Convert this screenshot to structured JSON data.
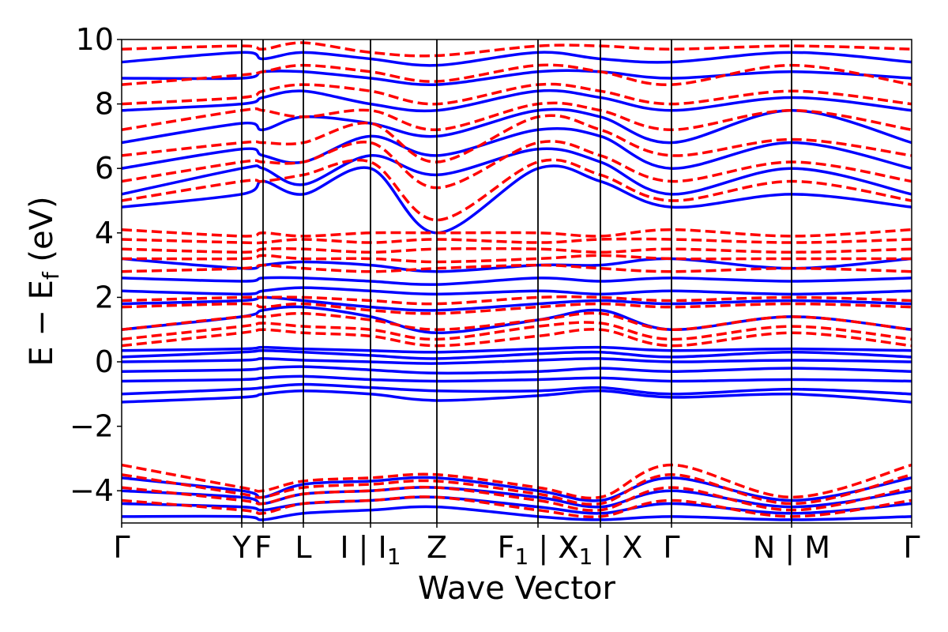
{
  "chart_data": {
    "type": "line",
    "title": "",
    "xlabel": "Wave Vector",
    "ylabel": "E − E_f (eV)",
    "ylabel_parts": {
      "main": "E − E",
      "subscript": "f",
      "unit": " (eV)"
    },
    "ylim": [
      -5,
      10
    ],
    "yticks": [
      -4,
      -2,
      0,
      2,
      4,
      6,
      8,
      10
    ],
    "ytick_labels": [
      "−4",
      "−2",
      "0",
      "2",
      "4",
      "6",
      "8",
      "10"
    ],
    "xlim": [
      0,
      1
    ],
    "kpoints": [
      {
        "x": 0.0,
        "label": "Γ"
      },
      {
        "x": 0.152,
        "label": "Y"
      },
      {
        "x": 0.179,
        "label": "F"
      },
      {
        "x": 0.23,
        "label": "L"
      },
      {
        "x": 0.315,
        "label": "I | I",
        "subscript": "1"
      },
      {
        "x": 0.399,
        "label": "Z"
      },
      {
        "x": 0.527,
        "label": "F",
        "subscript": "1",
        "suffix": " | X"
      },
      {
        "x": 0.606,
        "label": "X",
        "subscript": "1",
        "suffix": " | X"
      },
      {
        "x": 0.696,
        "label": "Γ"
      },
      {
        "x": 0.848,
        "label": "N | M"
      },
      {
        "x": 1.0,
        "label": "Γ"
      }
    ],
    "grid": false,
    "legend": "none",
    "series": [
      {
        "style": "solid",
        "color": "#0000ff",
        "bands": [
          [
            -1.25,
            -1.1,
            -1.0,
            -0.9,
            -1.0,
            -1.2,
            -1.05,
            -0.9,
            -1.1,
            -1.0,
            -1.25
          ],
          [
            -1.0,
            -0.85,
            -0.8,
            -0.7,
            -0.8,
            -0.9,
            -0.9,
            -0.8,
            -1.0,
            -0.85,
            -1.0
          ],
          [
            -0.6,
            -0.55,
            -0.5,
            -0.45,
            -0.55,
            -0.6,
            -0.55,
            -0.5,
            -0.6,
            -0.55,
            -0.6
          ],
          [
            -0.3,
            -0.25,
            -0.2,
            -0.15,
            -0.25,
            -0.35,
            -0.3,
            -0.2,
            -0.3,
            -0.2,
            -0.3
          ],
          [
            0.0,
            0.05,
            0.1,
            0.05,
            0.0,
            -0.05,
            0.05,
            0.1,
            0.0,
            0.05,
            0.0
          ],
          [
            0.15,
            0.3,
            0.35,
            0.3,
            0.2,
            0.1,
            0.25,
            0.3,
            0.15,
            0.3,
            0.15
          ],
          [
            0.35,
            0.4,
            0.45,
            0.4,
            0.35,
            0.3,
            0.4,
            0.45,
            0.35,
            0.4,
            0.35
          ],
          [
            1.0,
            1.4,
            1.6,
            1.7,
            1.4,
            0.9,
            1.3,
            1.6,
            1.0,
            1.4,
            1.0
          ],
          [
            1.8,
            1.9,
            2.0,
            1.9,
            1.7,
            1.6,
            1.8,
            1.9,
            1.8,
            1.9,
            1.8
          ],
          [
            2.2,
            2.1,
            2.2,
            2.3,
            2.2,
            2.1,
            2.2,
            2.1,
            2.2,
            2.1,
            2.2
          ],
          [
            2.6,
            2.5,
            2.6,
            2.6,
            2.5,
            2.4,
            2.6,
            2.5,
            2.6,
            2.5,
            2.6
          ],
          [
            3.2,
            2.9,
            3.0,
            3.1,
            3.0,
            2.8,
            3.0,
            3.0,
            3.2,
            2.9,
            3.2
          ],
          [
            -3.6,
            -4.0,
            -4.2,
            -3.8,
            -3.7,
            -3.6,
            -4.0,
            -4.3,
            -3.6,
            -4.3,
            -3.6
          ],
          [
            -4.0,
            -4.2,
            -4.4,
            -4.1,
            -4.0,
            -3.9,
            -4.2,
            -4.5,
            -4.0,
            -4.5,
            -4.0
          ],
          [
            -4.4,
            -4.5,
            -4.6,
            -4.4,
            -4.3,
            -4.2,
            -4.5,
            -4.7,
            -4.4,
            -4.7,
            -4.4
          ],
          [
            -4.8,
            -4.8,
            -4.9,
            -4.7,
            -4.6,
            -4.5,
            -4.8,
            -4.9,
            -4.8,
            -4.9,
            -4.8
          ],
          [
            4.8,
            5.2,
            5.6,
            5.2,
            6.0,
            4.0,
            6.0,
            5.6,
            4.8,
            5.2,
            4.8
          ],
          [
            5.2,
            6.0,
            6.0,
            5.5,
            6.4,
            5.8,
            6.6,
            6.2,
            5.2,
            6.0,
            5.2
          ],
          [
            6.0,
            6.6,
            6.4,
            6.2,
            7.0,
            6.4,
            7.2,
            7.0,
            6.0,
            6.8,
            6.0
          ],
          [
            6.8,
            7.4,
            7.2,
            7.6,
            7.4,
            7.0,
            7.8,
            7.6,
            6.8,
            7.8,
            6.8
          ],
          [
            7.8,
            8.0,
            8.2,
            8.4,
            8.0,
            7.8,
            8.4,
            8.2,
            7.8,
            8.2,
            7.8
          ],
          [
            8.8,
            8.8,
            9.0,
            9.0,
            8.8,
            8.6,
            9.0,
            9.0,
            8.8,
            9.0,
            8.8
          ],
          [
            9.3,
            9.6,
            9.4,
            9.6,
            9.4,
            9.2,
            9.6,
            9.4,
            9.3,
            9.6,
            9.3
          ]
        ]
      },
      {
        "style": "dashed",
        "color": "#ff0000",
        "bands": [
          [
            0.5,
            0.9,
            1.0,
            0.9,
            0.8,
            0.5,
            0.8,
            1.0,
            0.5,
            0.9,
            0.5
          ],
          [
            0.7,
            1.1,
            1.2,
            1.1,
            1.0,
            0.7,
            1.1,
            1.2,
            0.7,
            1.1,
            0.7
          ],
          [
            1.0,
            1.4,
            1.4,
            1.5,
            1.3,
            1.0,
            1.3,
            1.5,
            1.0,
            1.4,
            1.0
          ],
          [
            1.7,
            1.8,
            1.7,
            1.8,
            1.6,
            1.5,
            1.7,
            1.8,
            1.7,
            1.8,
            1.7
          ],
          [
            1.9,
            2.0,
            2.0,
            2.0,
            1.9,
            1.8,
            2.0,
            2.0,
            1.9,
            2.0,
            1.9
          ],
          [
            2.8,
            2.9,
            3.0,
            2.9,
            2.8,
            2.9,
            3.0,
            2.9,
            2.8,
            2.9,
            2.8
          ],
          [
            3.2,
            3.2,
            3.3,
            3.2,
            3.2,
            3.1,
            3.2,
            3.3,
            3.2,
            3.2,
            3.2
          ],
          [
            3.5,
            3.4,
            3.5,
            3.5,
            3.4,
            3.5,
            3.5,
            3.4,
            3.5,
            3.4,
            3.5
          ],
          [
            3.8,
            3.7,
            3.7,
            3.8,
            3.7,
            3.8,
            3.7,
            3.8,
            3.8,
            3.7,
            3.8
          ],
          [
            4.1,
            3.9,
            4.0,
            3.9,
            4.0,
            4.0,
            4.0,
            3.9,
            4.1,
            3.9,
            4.1
          ],
          [
            -3.2,
            -3.9,
            -4.0,
            -3.7,
            -3.6,
            -3.5,
            -3.9,
            -4.2,
            -3.2,
            -4.2,
            -3.2
          ],
          [
            -3.5,
            -4.1,
            -4.2,
            -3.9,
            -3.8,
            -3.7,
            -4.1,
            -4.4,
            -3.5,
            -4.4,
            -3.5
          ],
          [
            -3.9,
            -4.3,
            -4.4,
            -4.1,
            -4.0,
            -3.9,
            -4.3,
            -4.6,
            -3.9,
            -4.6,
            -3.9
          ],
          [
            -4.3,
            -4.6,
            -4.7,
            -4.4,
            -4.3,
            -4.2,
            -4.6,
            -4.8,
            -4.3,
            -4.8,
            -4.3
          ],
          [
            5.0,
            5.6,
            5.6,
            5.8,
            6.2,
            4.4,
            6.2,
            5.8,
            5.0,
            5.6,
            5.0
          ],
          [
            5.6,
            6.2,
            6.2,
            6.2,
            6.8,
            5.4,
            6.8,
            6.4,
            5.6,
            6.2,
            5.6
          ],
          [
            6.4,
            6.8,
            6.8,
            6.8,
            7.4,
            6.2,
            7.6,
            7.2,
            6.4,
            6.9,
            6.4
          ],
          [
            7.2,
            7.8,
            7.8,
            7.6,
            7.8,
            7.2,
            8.0,
            7.8,
            7.2,
            7.8,
            7.2
          ],
          [
            8.0,
            8.2,
            8.4,
            8.6,
            8.4,
            8.0,
            8.6,
            8.4,
            8.0,
            8.4,
            8.0
          ],
          [
            8.6,
            8.9,
            9.0,
            9.2,
            9.0,
            8.7,
            9.2,
            9.0,
            8.6,
            9.2,
            8.6
          ],
          [
            9.7,
            9.8,
            9.7,
            9.9,
            9.6,
            9.5,
            9.8,
            9.8,
            9.7,
            9.8,
            9.7
          ]
        ]
      }
    ]
  }
}
